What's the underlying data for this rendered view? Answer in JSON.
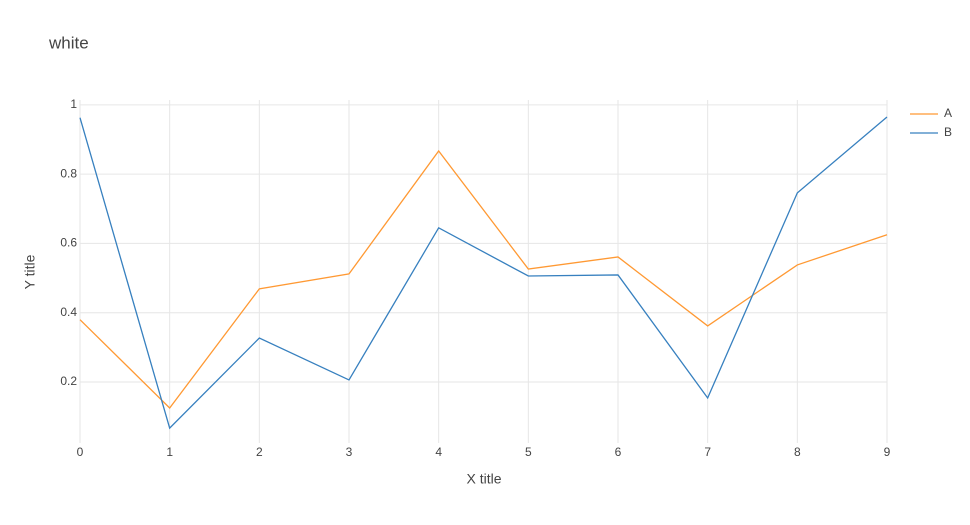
{
  "chart_data": {
    "type": "line",
    "title": "white",
    "x_label": "X title",
    "y_label": "Y title",
    "x": [
      0,
      1,
      2,
      3,
      4,
      5,
      6,
      7,
      8,
      9
    ],
    "series": [
      {
        "name": "A",
        "color": "#ff9933",
        "values": [
          0.38,
          0.125,
          0.469,
          0.512,
          0.867,
          0.526,
          0.561,
          0.362,
          0.538,
          0.625
        ]
      },
      {
        "name": "B",
        "color": "#3780bf",
        "values": [
          0.963,
          0.067,
          0.327,
          0.206,
          0.645,
          0.506,
          0.509,
          0.154,
          0.746,
          0.965
        ]
      }
    ],
    "xlim": [
      0,
      9
    ],
    "xticks": [
      0,
      1,
      2,
      3,
      4,
      5,
      6,
      7,
      8,
      9
    ],
    "ylim": [
      0.024,
      1.014
    ],
    "yticks": [
      0.2,
      0.4,
      0.6,
      0.8,
      1
    ],
    "grid": true,
    "legend": "right"
  }
}
